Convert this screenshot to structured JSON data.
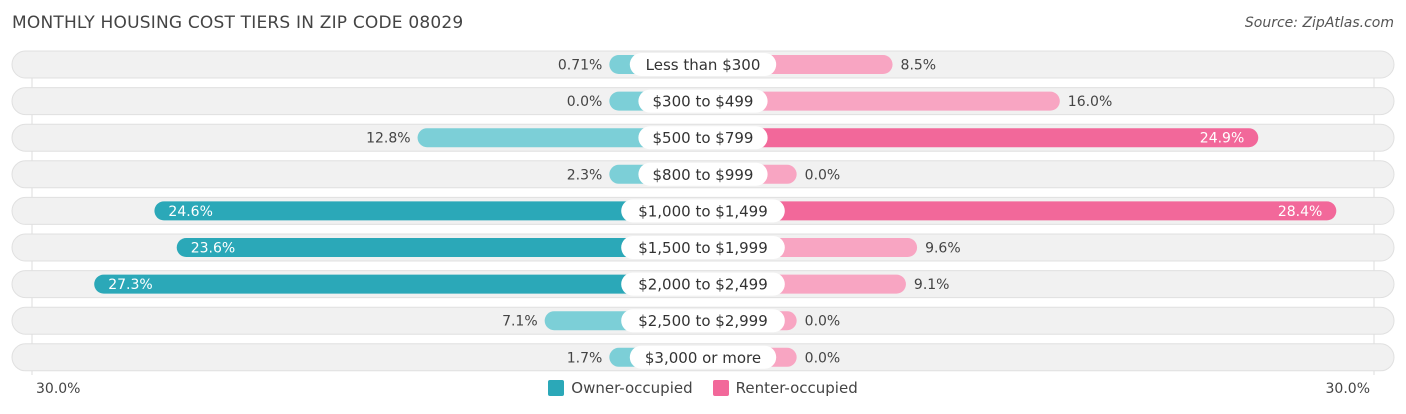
{
  "header": {
    "title": "MONTHLY HOUSING COST TIERS IN ZIP CODE 08029",
    "source": "Source: ZipAtlas.com"
  },
  "axis": {
    "left_label": "30.0%",
    "right_label": "30.0%"
  },
  "legend": {
    "owner_label": "Owner-occupied",
    "renter_label": "Renter-occupied"
  },
  "colors": {
    "owner_strong": "#2ba8b8",
    "owner_light": "#7ccfd7",
    "renter_strong": "#f2689a",
    "renter_light": "#f8a5c2",
    "row_bg": "#f1f1f1",
    "row_border": "#e0e0e0"
  },
  "chart_data": {
    "type": "bar",
    "orientation": "horizontal-diverging",
    "categories": [
      "Less than $300",
      "$300 to $499",
      "$500 to $799",
      "$800 to $999",
      "$1,000 to $1,499",
      "$1,500 to $1,999",
      "$2,000 to $2,499",
      "$2,500 to $2,999",
      "$3,000 or more"
    ],
    "series": [
      {
        "name": "Owner-occupied",
        "values": [
          0.71,
          0.0,
          12.8,
          2.3,
          24.6,
          23.6,
          27.3,
          7.1,
          1.7
        ],
        "labels": [
          "0.71%",
          "0.0%",
          "12.8%",
          "2.3%",
          "24.6%",
          "23.6%",
          "27.3%",
          "7.1%",
          "1.7%"
        ]
      },
      {
        "name": "Renter-occupied",
        "values": [
          8.5,
          16.0,
          24.9,
          0.0,
          28.4,
          9.6,
          9.1,
          0.0,
          0.0
        ],
        "labels": [
          "8.5%",
          "16.0%",
          "24.9%",
          "0.0%",
          "28.4%",
          "9.6%",
          "9.1%",
          "0.0%",
          "0.0%"
        ]
      }
    ],
    "xlim": [
      -30,
      30
    ],
    "title": "MONTHLY HOUSING COST TIERS IN ZIP CODE 08029"
  }
}
